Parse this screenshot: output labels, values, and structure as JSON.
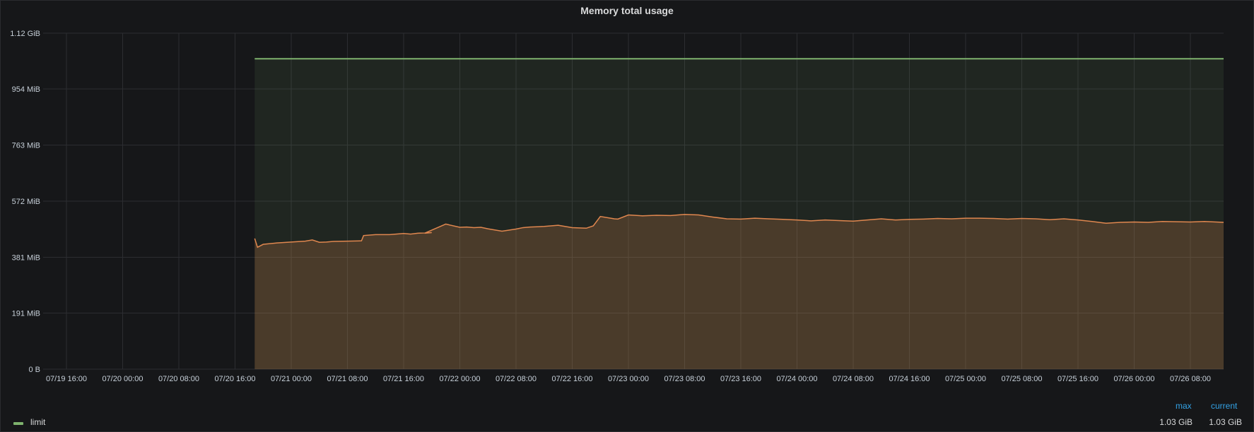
{
  "panel": {
    "title": "Memory total usage"
  },
  "chart_data": {
    "type": "area",
    "title": "Memory total usage",
    "y_ticks": [
      "0 B",
      "191 MiB",
      "381 MiB",
      "572 MiB",
      "763 MiB",
      "954 MiB",
      "1.12 GiB"
    ],
    "y_tick_values_mib": [
      0,
      191,
      381,
      572,
      763,
      954,
      1144
    ],
    "ylim_mib": [
      0,
      1144
    ],
    "x_ticks": [
      "07/19 16:00",
      "07/20 00:00",
      "07/20 08:00",
      "07/20 16:00",
      "07/21 00:00",
      "07/21 08:00",
      "07/21 16:00",
      "07/22 00:00",
      "07/22 08:00",
      "07/22 16:00",
      "07/23 00:00",
      "07/23 08:00",
      "07/23 16:00",
      "07/24 00:00",
      "07/24 08:00",
      "07/24 16:00",
      "07/25 00:00",
      "07/25 08:00",
      "07/25 16:00",
      "07/26 00:00",
      "07/26 08:00"
    ],
    "xlim_hours_from_first_tick": [
      0,
      165
    ],
    "grid": true,
    "legend_placement": "bottom",
    "series": [
      {
        "name": "limit",
        "color": "#7eb26d",
        "hours": [
          26.8,
          165
        ],
        "values_mib": [
          1057,
          1057
        ]
      },
      {
        "name": "",
        "color": "#e0874f",
        "hours": [
          26.8,
          27.2,
          28,
          30,
          32,
          34,
          35,
          36,
          37,
          38,
          40,
          42,
          42.3,
          44,
          46,
          48,
          49,
          50,
          52,
          51,
          54,
          56,
          57,
          58,
          59,
          60,
          62,
          64,
          65,
          66,
          68,
          70,
          72,
          74,
          75,
          76,
          78,
          78.5,
          80,
          82,
          84,
          86,
          88,
          90,
          92,
          94,
          96,
          98,
          100,
          102,
          104,
          106,
          108,
          110,
          112,
          114,
          116,
          118,
          120,
          122,
          124,
          126,
          128,
          130,
          132,
          134,
          136,
          138,
          140,
          142,
          144,
          146,
          148,
          150,
          152,
          154,
          156,
          158,
          160,
          162,
          165
        ],
        "values_mib": [
          445,
          415,
          425,
          430,
          433,
          436,
          440,
          432,
          433,
          435,
          436,
          437,
          455,
          458,
          458,
          462,
          460,
          463,
          465,
          463,
          494,
          483,
          484,
          482,
          483,
          478,
          470,
          477,
          482,
          484,
          486,
          490,
          482,
          480,
          488,
          520,
          512,
          511,
          525,
          522,
          524,
          523,
          527,
          525,
          518,
          512,
          511,
          514,
          512,
          510,
          508,
          505,
          508,
          506,
          504,
          508,
          512,
          508,
          510,
          511,
          513,
          512,
          514,
          514,
          513,
          511,
          513,
          512,
          509,
          512,
          508,
          503,
          497,
          500,
          501,
          500,
          503,
          502,
          501,
          503,
          500
        ]
      }
    ]
  },
  "legend": {
    "headers": {
      "max": "max",
      "current": "current"
    },
    "items": [
      {
        "name": "limit",
        "color": "#7eb26d",
        "max": "1.03 GiB",
        "current": "1.03 GiB"
      }
    ]
  }
}
